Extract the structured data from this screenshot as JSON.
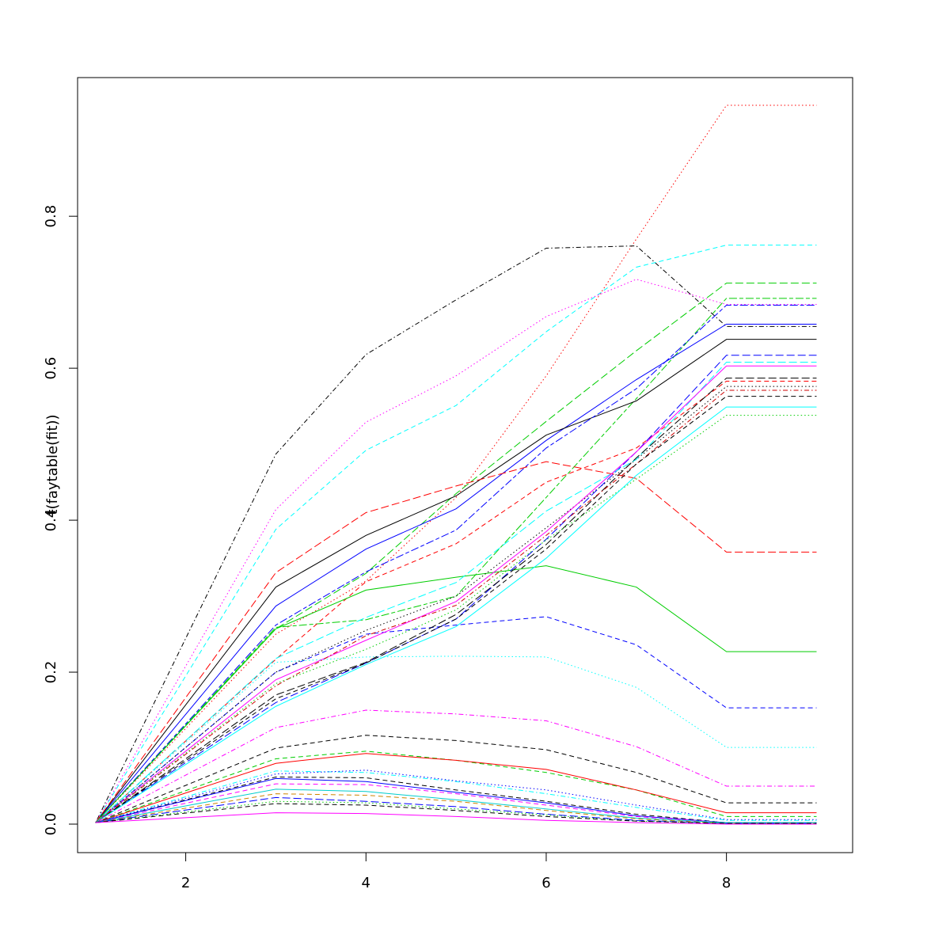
{
  "chart_data": {
    "type": "line",
    "title": "",
    "xlabel": "",
    "ylabel": "t(faytable(fit))",
    "xlim": [
      0.8,
      9.4
    ],
    "ylim": [
      -0.0375,
      0.9825
    ],
    "x": [
      1,
      3,
      4,
      5,
      6,
      7,
      8,
      9
    ],
    "x_ticks": [
      2,
      4,
      6,
      8
    ],
    "y_ticks": [
      0.0,
      0.2,
      0.4,
      0.6,
      0.8
    ],
    "grid": false,
    "legend": "none",
    "series": [
      {
        "color": "#FF0000",
        "dash": "dot",
        "values": [
          0.002,
          0.25,
          0.32,
          0.43,
          0.59,
          0.77,
          0.946,
          0.946
        ]
      },
      {
        "color": "#000000",
        "dash": "dotdash",
        "values": [
          0.002,
          0.487,
          0.618,
          0.69,
          0.758,
          0.761,
          0.655,
          0.655
        ]
      },
      {
        "color": "#00FFFF",
        "dash": "dash",
        "values": [
          0.002,
          0.388,
          0.492,
          0.551,
          0.648,
          0.733,
          0.762,
          0.762
        ]
      },
      {
        "color": "#FF00FF",
        "dash": "dot",
        "values": [
          0.002,
          0.414,
          0.529,
          0.59,
          0.668,
          0.717,
          0.684,
          0.684
        ]
      },
      {
        "color": "#00CD00",
        "dash": "longdash",
        "values": [
          0.002,
          0.257,
          0.33,
          0.435,
          0.53,
          0.623,
          0.712,
          0.712
        ]
      },
      {
        "color": "#00CD00",
        "dash": "twodash",
        "values": [
          0.002,
          0.259,
          0.269,
          0.3,
          0.43,
          0.56,
          0.692,
          0.692
        ]
      },
      {
        "color": "#0000FF",
        "dash": "solid",
        "values": [
          0.002,
          0.287,
          0.362,
          0.415,
          0.505,
          0.585,
          0.658,
          0.658
        ]
      },
      {
        "color": "#000000",
        "dash": "solid",
        "values": [
          0.002,
          0.312,
          0.38,
          0.432,
          0.512,
          0.557,
          0.638,
          0.638
        ]
      },
      {
        "color": "#0000FF",
        "dash": "twodash",
        "values": [
          0.002,
          0.262,
          0.332,
          0.387,
          0.495,
          0.573,
          0.683,
          0.683
        ]
      },
      {
        "color": "#FF0000",
        "dash": "longdash",
        "values": [
          0.002,
          0.331,
          0.41,
          0.445,
          0.477,
          0.455,
          0.358,
          0.358
        ]
      },
      {
        "color": "#FF0000",
        "dash": "dash",
        "values": [
          0.002,
          0.217,
          0.319,
          0.369,
          0.45,
          0.495,
          0.583,
          0.583
        ]
      },
      {
        "color": "#00CD00",
        "dash": "solid",
        "values": [
          0.002,
          0.257,
          0.308,
          0.325,
          0.34,
          0.312,
          0.227,
          0.227
        ]
      },
      {
        "color": "#0000FF",
        "dash": "dash",
        "values": [
          0.002,
          0.2,
          0.25,
          0.262,
          0.273,
          0.236,
          0.153,
          0.153
        ]
      },
      {
        "color": "#00FFFF",
        "dash": "dot",
        "values": [
          0.002,
          0.213,
          0.22,
          0.221,
          0.22,
          0.18,
          0.101,
          0.101
        ]
      },
      {
        "color": "#000000",
        "dash": "dot",
        "values": [
          0.002,
          0.2,
          0.255,
          0.3,
          0.39,
          0.48,
          0.576,
          0.576
        ]
      },
      {
        "color": "#0000FF",
        "dash": "longdash",
        "values": [
          0.002,
          0.16,
          0.212,
          0.27,
          0.375,
          0.49,
          0.617,
          0.617
        ]
      },
      {
        "color": "#00FFFF",
        "dash": "longdash",
        "values": [
          0.002,
          0.218,
          0.272,
          0.318,
          0.412,
          0.48,
          0.608,
          0.608
        ]
      },
      {
        "color": "#FF00FF",
        "dash": "solid",
        "values": [
          0.002,
          0.19,
          0.242,
          0.293,
          0.385,
          0.49,
          0.603,
          0.603
        ]
      },
      {
        "color": "#000000",
        "dash": "longdash",
        "values": [
          0.002,
          0.17,
          0.213,
          0.276,
          0.368,
          0.482,
          0.587,
          0.587
        ]
      },
      {
        "color": "#CD0000",
        "dash": "dotdash",
        "values": [
          0.002,
          0.182,
          0.248,
          0.288,
          0.38,
          0.474,
          0.571,
          0.571
        ]
      },
      {
        "color": "#000000",
        "dash": "dash",
        "values": [
          0.002,
          0.165,
          0.212,
          0.27,
          0.362,
          0.474,
          0.563,
          0.563
        ]
      },
      {
        "color": "#00CD00",
        "dash": "dot",
        "values": [
          0.002,
          0.185,
          0.23,
          0.282,
          0.374,
          0.454,
          0.538,
          0.538
        ]
      },
      {
        "color": "#00FFFF",
        "dash": "solid",
        "values": [
          0.002,
          0.155,
          0.21,
          0.26,
          0.35,
          0.459,
          0.549,
          0.549
        ]
      },
      {
        "color": "#FF00FF",
        "dash": "dotdash",
        "values": [
          0.002,
          0.127,
          0.15,
          0.145,
          0.136,
          0.102,
          0.05,
          0.05
        ]
      },
      {
        "color": "#000000",
        "dash": "dash",
        "values": [
          0.002,
          0.1,
          0.117,
          0.11,
          0.098,
          0.068,
          0.028,
          0.028
        ]
      },
      {
        "color": "#00CD00",
        "dash": "dash",
        "values": [
          0.002,
          0.086,
          0.096,
          0.084,
          0.068,
          0.045,
          0.01,
          0.01
        ]
      },
      {
        "color": "#FF0000",
        "dash": "solid",
        "values": [
          0.002,
          0.08,
          0.093,
          0.084,
          0.072,
          0.045,
          0.015,
          0.015
        ]
      },
      {
        "color": "#00FFFF",
        "dash": "dotdash",
        "values": [
          0.002,
          0.07,
          0.068,
          0.056,
          0.04,
          0.022,
          0.005,
          0.005
        ]
      },
      {
        "color": "#0000FF",
        "dash": "dot",
        "values": [
          0.002,
          0.066,
          0.071,
          0.057,
          0.045,
          0.025,
          0.006,
          0.006
        ]
      },
      {
        "color": "#000000",
        "dash": "dash",
        "values": [
          0.002,
          0.062,
          0.061,
          0.045,
          0.03,
          0.013,
          0.002,
          0.002
        ]
      },
      {
        "color": "#0000FF",
        "dash": "solid",
        "values": [
          0.002,
          0.06,
          0.056,
          0.042,
          0.028,
          0.011,
          0.002,
          0.002
        ]
      },
      {
        "color": "#FF00FF",
        "dash": "dash",
        "values": [
          0.002,
          0.053,
          0.052,
          0.04,
          0.025,
          0.01,
          0.002,
          0.002
        ]
      },
      {
        "color": "#00CDCD",
        "dash": "solid",
        "values": [
          0.002,
          0.046,
          0.043,
          0.032,
          0.02,
          0.008,
          0.002,
          0.002
        ]
      },
      {
        "color": "#CD8500",
        "dash": "dash",
        "values": [
          0.002,
          0.04,
          0.038,
          0.03,
          0.018,
          0.007,
          0.001,
          0.001
        ]
      },
      {
        "color": "#0000FF",
        "dash": "longdash",
        "values": [
          0.002,
          0.035,
          0.03,
          0.023,
          0.013,
          0.005,
          0.001,
          0.001
        ]
      },
      {
        "color": "#00CD00",
        "dash": "dot",
        "values": [
          0.002,
          0.03,
          0.028,
          0.02,
          0.012,
          0.004,
          0.001,
          0.001
        ]
      },
      {
        "color": "#000000",
        "dash": "dash",
        "values": [
          0.002,
          0.027,
          0.025,
          0.018,
          0.01,
          0.004,
          0.001,
          0.001
        ]
      },
      {
        "color": "#FF00FF",
        "dash": "solid",
        "values": [
          0.002,
          0.015,
          0.014,
          0.01,
          0.005,
          0.002,
          0.0,
          0.0
        ]
      }
    ]
  }
}
